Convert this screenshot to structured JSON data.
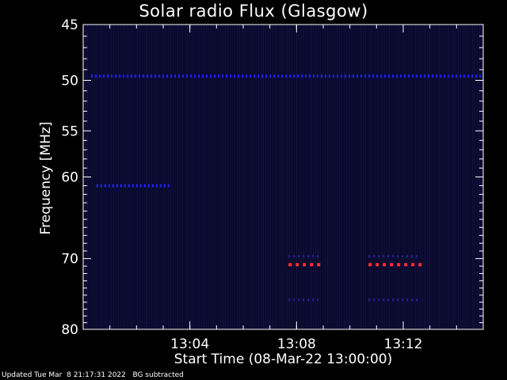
{
  "chart_data": {
    "type": "heatmap",
    "title": "Solar radio Flux (Glasgow)",
    "ylabel": "Frequency [MHz]",
    "xlabel": "Start Time (08-Mar-22 13:00:00)",
    "ylim": [
      45,
      80
    ],
    "y_ticks": [
      45,
      50,
      55,
      60,
      70,
      80
    ],
    "x_range_minutes": [
      0,
      15
    ],
    "x_ticks": [
      {
        "minute": 4,
        "label": "13:04"
      },
      {
        "minute": 8,
        "label": "13:08"
      },
      {
        "minute": 12,
        "label": "13:12"
      }
    ],
    "background_color": "#0a0a2e",
    "features": [
      {
        "name": "",
        "freq_mhz": 49.6,
        "minute_start": 0.3,
        "minute_end": 15,
        "color": "#2020ff"
      },
      {
        "name": "",
        "freq_mhz": 61.0,
        "minute_start": 0.5,
        "minute_end": 3.3,
        "color": "#2020ff"
      },
      {
        "name": "",
        "freq_mhz": 70.8,
        "minute_start": 7.7,
        "minute_end": 8.8,
        "color": "#ff3030"
      },
      {
        "name": "",
        "freq_mhz": 70.8,
        "minute_start": 10.7,
        "minute_end": 12.6,
        "color": "#ff3030"
      }
    ]
  },
  "footer": "Updated Tue Mar  8 21:17:31 2022   BG subtracted"
}
